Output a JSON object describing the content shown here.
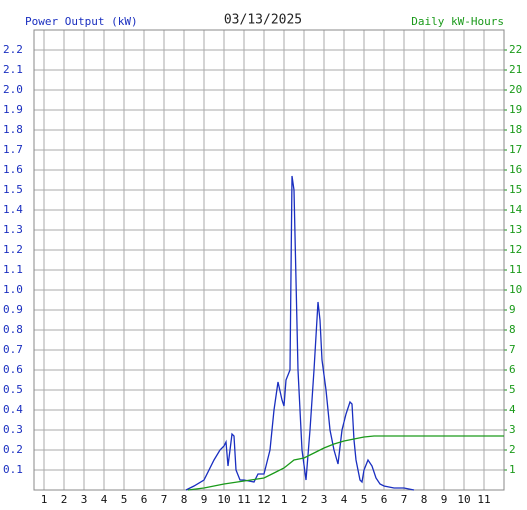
{
  "chart_data": {
    "type": "line",
    "title": "03/13/2025",
    "ylabel": "Power Output (kW)",
    "y2label": "Daily kW-Hours",
    "xlim": [
      0.5,
      24
    ],
    "xticks": [
      1,
      2,
      3,
      4,
      5,
      6,
      7,
      8,
      9,
      10,
      11,
      12,
      {
        "value": 13,
        "label": "1"
      },
      {
        "value": 14,
        "label": "2"
      },
      {
        "value": 15,
        "label": "3"
      },
      {
        "value": 16,
        "label": "4"
      },
      {
        "value": 17,
        "label": "5"
      },
      {
        "value": 18,
        "label": "6"
      },
      {
        "value": 19,
        "label": "7"
      },
      {
        "value": 20,
        "label": "8"
      },
      {
        "value": 21,
        "label": "9"
      },
      {
        "value": 22,
        "label": "10"
      },
      {
        "value": 23,
        "label": "11"
      }
    ],
    "ylim": [
      0,
      2.3
    ],
    "yticks": [
      0.1,
      0.2,
      0.3,
      0.4,
      0.5,
      0.6,
      0.7,
      0.8,
      0.9,
      {
        "value": 1,
        "label": "1.0"
      },
      1.1,
      1.2,
      1.3,
      1.4,
      1.5,
      1.6,
      1.7,
      1.8,
      1.9,
      {
        "value": 2,
        "label": "2.0"
      },
      2.1,
      2.2
    ],
    "y2lim": [
      0,
      23
    ],
    "y2ticks": [
      1,
      2,
      3,
      4,
      5,
      6,
      7,
      8,
      9,
      10,
      11,
      12,
      13,
      14,
      15,
      16,
      17,
      18,
      19,
      20,
      21,
      22
    ],
    "grid": true,
    "series": [
      {
        "color": "#1a2fc0",
        "axis": "y",
        "x": [
          8.1,
          8.5,
          9,
          9.5,
          9.8,
          10,
          10.1,
          10.2,
          10.4,
          10.5,
          10.6,
          10.8,
          11,
          11.5,
          11.7,
          12,
          12.3,
          12.5,
          12.7,
          12.9,
          13,
          13.1,
          13.3,
          13.4,
          13.5,
          13.7,
          13.9,
          14.1,
          14.3,
          14.5,
          14.7,
          14.8,
          14.9,
          15.1,
          15.3,
          15.5,
          15.7,
          15.9,
          16.1,
          16.3,
          16.4,
          16.5,
          16.6,
          16.8,
          16.9,
          17,
          17.2,
          17.4,
          17.6,
          17.8,
          18,
          18.5,
          19,
          19.5
        ],
        "values": [
          0,
          0.02,
          0.05,
          0.15,
          0.2,
          0.22,
          0.24,
          0.12,
          0.28,
          0.27,
          0.1,
          0.05,
          0.05,
          0.04,
          0.08,
          0.08,
          0.2,
          0.4,
          0.54,
          0.45,
          0.42,
          0.55,
          0.6,
          1.57,
          1.5,
          0.6,
          0.2,
          0.05,
          0.3,
          0.6,
          0.94,
          0.85,
          0.65,
          0.5,
          0.3,
          0.2,
          0.13,
          0.3,
          0.38,
          0.44,
          0.43,
          0.25,
          0.15,
          0.05,
          0.04,
          0.1,
          0.15,
          0.12,
          0.06,
          0.03,
          0.02,
          0.01,
          0.01,
          0
        ]
      },
      {
        "color": "#1a9a1a",
        "axis": "y2",
        "x": [
          8.2,
          9,
          10,
          11,
          12,
          12.5,
          13,
          13.5,
          14,
          14.5,
          15,
          15.5,
          16,
          16.5,
          17,
          17.5,
          24
        ],
        "values": [
          0,
          0.1,
          0.3,
          0.45,
          0.6,
          0.85,
          1.1,
          1.5,
          1.6,
          1.85,
          2.1,
          2.3,
          2.45,
          2.55,
          2.65,
          2.7,
          2.7
        ]
      }
    ]
  }
}
